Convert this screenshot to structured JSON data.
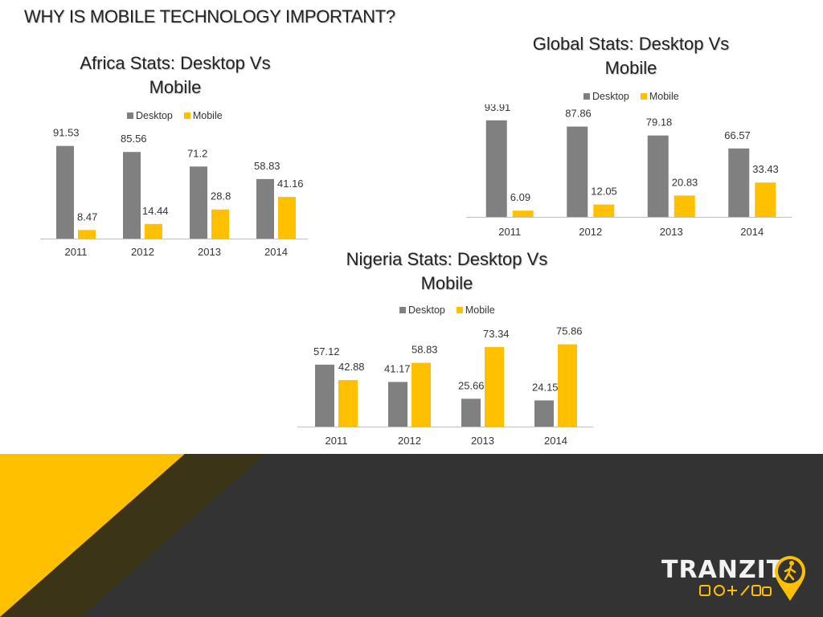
{
  "page": {
    "title": "WHY IS MOBILE TECHNOLOGY IMPORTANT?"
  },
  "colors": {
    "desktop": "#808080",
    "mobile": "#FFC000",
    "footer_dark": "#333333",
    "footer_yellow": "#FFC000",
    "footer_shadow": "#3b3416"
  },
  "brand": {
    "name": "TRANZIT"
  },
  "chart_data": [
    {
      "id": "africa",
      "type": "bar",
      "title": "Africa Stats: Desktop Vs Mobile",
      "title_line1": "Africa Stats: Desktop Vs",
      "title_line2": "Mobile",
      "categories": [
        "2011",
        "2012",
        "2013",
        "2014"
      ],
      "series": [
        {
          "name": "Desktop",
          "values": [
            91.53,
            85.56,
            71.2,
            58.83
          ]
        },
        {
          "name": "Mobile",
          "values": [
            8.47,
            14.44,
            28.8,
            41.16
          ]
        }
      ],
      "labels": [
        [
          "91.53",
          "85.56",
          "71.2",
          "58.83"
        ],
        [
          "8.47",
          "14.44",
          "28.8",
          "41.16"
        ]
      ],
      "legend": [
        "Desktop",
        "Mobile"
      ],
      "ylim": [
        0,
        100
      ]
    },
    {
      "id": "global",
      "type": "bar",
      "title": "Global Stats: Desktop Vs Mobile",
      "title_line1": "Global Stats: Desktop Vs",
      "title_line2": "Mobile",
      "categories": [
        "2011",
        "2012",
        "2013",
        "2014"
      ],
      "series": [
        {
          "name": "Desktop",
          "values": [
            93.91,
            87.86,
            79.18,
            66.57
          ]
        },
        {
          "name": "Mobile",
          "values": [
            6.09,
            12.05,
            20.83,
            33.43
          ]
        }
      ],
      "labels": [
        [
          "93.91",
          "87.86",
          "79.18",
          "66.57"
        ],
        [
          "6.09",
          "12.05",
          "20.83",
          "33.43"
        ]
      ],
      "legend": [
        "Desktop",
        "Mobile"
      ],
      "ylim": [
        0,
        100
      ]
    },
    {
      "id": "nigeria",
      "type": "bar",
      "title": "Nigeria Stats: Desktop Vs Mobile",
      "title_line1": "Nigeria Stats: Desktop Vs",
      "title_line2": "Mobile",
      "categories": [
        "2011",
        "2012",
        "2013",
        "2014"
      ],
      "series": [
        {
          "name": "Desktop",
          "values": [
            57.12,
            41.17,
            25.66,
            24.15
          ]
        },
        {
          "name": "Mobile",
          "values": [
            42.88,
            58.83,
            73.34,
            75.86
          ]
        }
      ],
      "labels": [
        [
          "57.12",
          "41.17",
          "25.66",
          "24.15"
        ],
        [
          "42.88",
          "58.83",
          "73.34",
          "75.86"
        ]
      ],
      "legend": [
        "Desktop",
        "Mobile"
      ],
      "ylim": [
        0,
        100
      ]
    }
  ]
}
